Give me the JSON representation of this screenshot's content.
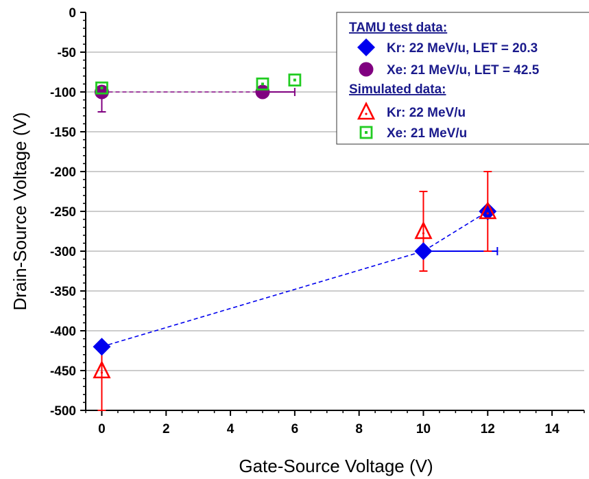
{
  "chart_data": {
    "type": "scatter",
    "xlabel": "Gate-Source Voltage (V)",
    "ylabel": "Drain-Source Voltage (V)",
    "xlim": [
      -0.5,
      15
    ],
    "ylim": [
      -500,
      0
    ],
    "xticks": [
      0,
      2,
      4,
      6,
      8,
      10,
      12,
      14
    ],
    "yticks": [
      0,
      -50,
      -100,
      -150,
      -200,
      -250,
      -300,
      -350,
      -400,
      -450,
      -500
    ],
    "grid": "horizontal",
    "legend_position": "top-right",
    "legend": {
      "test_header": "TAMU test data:",
      "sim_header": "Simulated data:"
    },
    "series": [
      {
        "name": "Kr: 22 MeV/u, LET = 20.3",
        "group": "test",
        "marker": "diamond",
        "color": "#0000ee",
        "line": "dashed",
        "points": [
          {
            "x": 0,
            "y": -420
          },
          {
            "x": 10,
            "y": -300,
            "xerr_plus": 2.3
          },
          {
            "x": 12,
            "y": -250
          }
        ]
      },
      {
        "name": "Xe: 21 MeV/u, LET = 42.5",
        "group": "test",
        "marker": "circle",
        "color": "#800080",
        "line": "dashed",
        "points": [
          {
            "x": 0,
            "y": -100,
            "yerr_minus": 25
          },
          {
            "x": 5,
            "y": -100,
            "xerr_plus": 1
          }
        ]
      },
      {
        "name": "Kr:  22 MeV/u",
        "group": "sim",
        "marker": "triangle",
        "color": "#ff0000",
        "line": "none",
        "points": [
          {
            "x": 0,
            "y": -450,
            "yerr_minus": 50,
            "yerr_plus": 25
          },
          {
            "x": 10,
            "y": -275,
            "yerr_minus": 50,
            "yerr_plus": 50
          },
          {
            "x": 12,
            "y": -250,
            "yerr_minus": 50,
            "yerr_plus": 50
          }
        ]
      },
      {
        "name": "Xe: 21 MeV/u",
        "group": "sim",
        "marker": "square",
        "color": "#22cc22",
        "line": "none",
        "points": [
          {
            "x": 0,
            "y": -95
          },
          {
            "x": 5,
            "y": -90
          },
          {
            "x": 6,
            "y": -85
          }
        ]
      }
    ]
  }
}
